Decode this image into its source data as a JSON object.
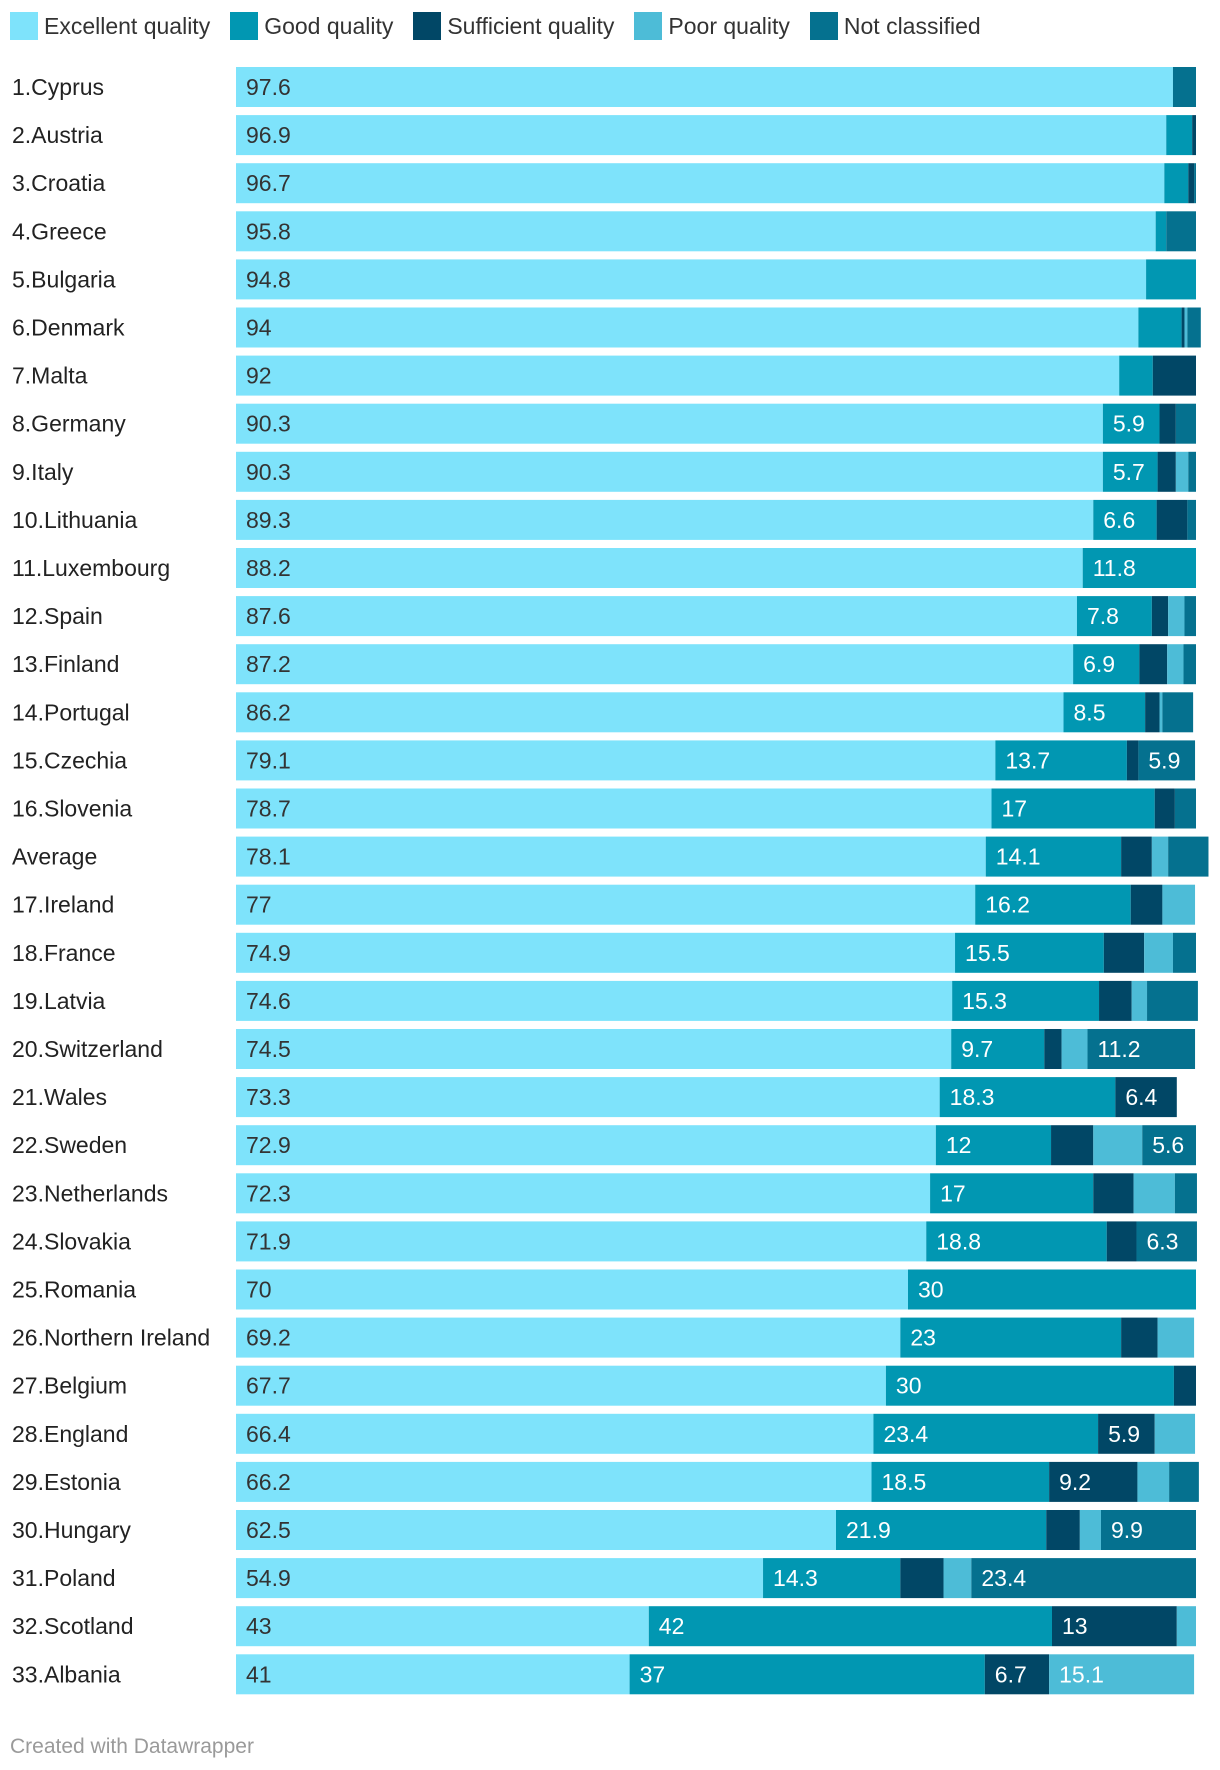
{
  "legend": [
    {
      "label": "Excellent quality",
      "color": "#7ee3fb"
    },
    {
      "label": "Good quality",
      "color": "#0197b2"
    },
    {
      "label": "Sufficient quality",
      "color": "#014766"
    },
    {
      "label": "Poor quality",
      "color": "#4dbcd7"
    },
    {
      "label": "Not classified",
      "color": "#05718f"
    }
  ],
  "chart_data": {
    "type": "bar",
    "orientation": "horizontal",
    "stacked": true,
    "xlim": [
      0,
      100
    ],
    "categories": [
      "1.Cyprus",
      "2.Austria",
      "3.Croatia",
      "4.Greece",
      "5.Bulgaria",
      "6.Denmark",
      "7.Malta",
      "8.Germany",
      "9.Italy",
      "10.Lithuania",
      "11.Luxembourg",
      "12.Spain",
      "13.Finland",
      "14.Portugal",
      "15.Czechia",
      "16.Slovenia",
      "Average",
      "17.Ireland",
      "18.France",
      "19.Latvia",
      "20.Switzerland",
      "21.Wales",
      "22.Sweden",
      "23.Netherlands",
      "24.Slovakia",
      "25.Romania",
      "26.Northern Ireland",
      "27.Belgium",
      "28.England",
      "29.Estonia",
      "30.Hungary",
      "31.Poland",
      "32.Scotland",
      "33.Albania"
    ],
    "series": [
      {
        "name": "Excellent quality",
        "values": [
          97.6,
          96.9,
          96.7,
          95.8,
          94.8,
          94,
          92,
          90.3,
          90.3,
          89.3,
          88.2,
          87.6,
          87.2,
          86.2,
          79.1,
          78.7,
          78.1,
          77,
          74.9,
          74.6,
          74.5,
          73.3,
          72.9,
          72.3,
          71.9,
          70,
          69.2,
          67.7,
          66.4,
          66.2,
          62.5,
          54.9,
          43,
          41
        ]
      },
      {
        "name": "Good quality",
        "values": [
          0,
          2.7,
          2.5,
          1.1,
          5.2,
          4.5,
          3.5,
          5.9,
          5.7,
          6.6,
          11.8,
          7.8,
          6.9,
          8.5,
          13.7,
          17,
          14.1,
          16.2,
          15.5,
          15.3,
          9.7,
          18.3,
          12,
          17,
          18.8,
          30,
          23,
          30,
          23.4,
          18.5,
          21.9,
          14.3,
          42,
          37
        ]
      },
      {
        "name": "Sufficient quality",
        "values": [
          0,
          0.4,
          0.6,
          0,
          0,
          0.3,
          4.5,
          1.7,
          1.9,
          3.2,
          0,
          1.7,
          2.9,
          1.5,
          1.2,
          2.1,
          3.2,
          3.3,
          4.2,
          3.4,
          1.8,
          6.4,
          4.4,
          4.2,
          3.1,
          0,
          3.8,
          2.3,
          5.9,
          9.2,
          3.5,
          4.5,
          13,
          6.7
        ]
      },
      {
        "name": "Poor quality",
        "values": [
          0,
          0,
          0,
          0,
          0,
          0.3,
          0,
          0,
          1.3,
          0,
          0,
          1.7,
          1.7,
          0.3,
          0,
          0,
          1.7,
          3.4,
          3,
          1.6,
          2.7,
          0,
          5.1,
          4.3,
          0,
          0,
          3.8,
          0,
          4.2,
          3.3,
          2.2,
          2.9,
          2,
          15.1
        ]
      },
      {
        "name": "Not classified",
        "values": [
          2.4,
          0,
          0.2,
          3.1,
          0,
          1.4,
          0,
          2.1,
          0.8,
          0.9,
          0,
          1.2,
          1.3,
          3.2,
          5.9,
          2.2,
          4.2,
          0,
          2.4,
          5.3,
          11.2,
          0,
          5.6,
          2.3,
          6.3,
          0,
          0,
          0,
          0,
          3.1,
          9.9,
          23.4,
          0,
          0
        ]
      }
    ],
    "labels": [
      [
        "97.6",
        "",
        "",
        "",
        ""
      ],
      [
        "96.9",
        "",
        "",
        "",
        ""
      ],
      [
        "96.7",
        "",
        "",
        "",
        ""
      ],
      [
        "95.8",
        "",
        "",
        "",
        ""
      ],
      [
        "94.8",
        "",
        "",
        "",
        ""
      ],
      [
        "94",
        "",
        "",
        "",
        ""
      ],
      [
        "92",
        "",
        "",
        "",
        ""
      ],
      [
        "90.3",
        "5.9",
        "",
        "",
        ""
      ],
      [
        "90.3",
        "5.7",
        "",
        "",
        ""
      ],
      [
        "89.3",
        "6.6",
        "",
        "",
        ""
      ],
      [
        "88.2",
        "11.8",
        "",
        "",
        ""
      ],
      [
        "87.6",
        "7.8",
        "",
        "",
        ""
      ],
      [
        "87.2",
        "6.9",
        "",
        "",
        ""
      ],
      [
        "86.2",
        "8.5",
        "",
        "",
        ""
      ],
      [
        "79.1",
        "13.7",
        "",
        "",
        "5.9"
      ],
      [
        "78.7",
        "17",
        "",
        "",
        ""
      ],
      [
        "78.1",
        "14.1",
        "",
        "",
        ""
      ],
      [
        "77",
        "16.2",
        "",
        "",
        ""
      ],
      [
        "74.9",
        "15.5",
        "",
        "",
        ""
      ],
      [
        "74.6",
        "15.3",
        "",
        "",
        ""
      ],
      [
        "74.5",
        "9.7",
        "",
        "",
        "11.2"
      ],
      [
        "73.3",
        "18.3",
        "6.4",
        "",
        ""
      ],
      [
        "72.9",
        "12",
        "",
        "",
        "5.6"
      ],
      [
        "72.3",
        "17",
        "",
        "",
        ""
      ],
      [
        "71.9",
        "18.8",
        "",
        "",
        "6.3"
      ],
      [
        "70",
        "30",
        "",
        "",
        ""
      ],
      [
        "69.2",
        "23",
        "",
        "",
        ""
      ],
      [
        "67.7",
        "30",
        "",
        "",
        ""
      ],
      [
        "66.4",
        "23.4",
        "5.9",
        "",
        ""
      ],
      [
        "66.2",
        "18.5",
        "9.2",
        "",
        ""
      ],
      [
        "62.5",
        "21.9",
        "",
        "",
        "9.9"
      ],
      [
        "54.9",
        "14.3",
        "",
        "",
        "23.4"
      ],
      [
        "43",
        "42",
        "13",
        "",
        ""
      ],
      [
        "41",
        "37",
        "6.7",
        "15.1",
        ""
      ]
    ]
  },
  "footer": {
    "text": "Created with Datawrapper"
  }
}
